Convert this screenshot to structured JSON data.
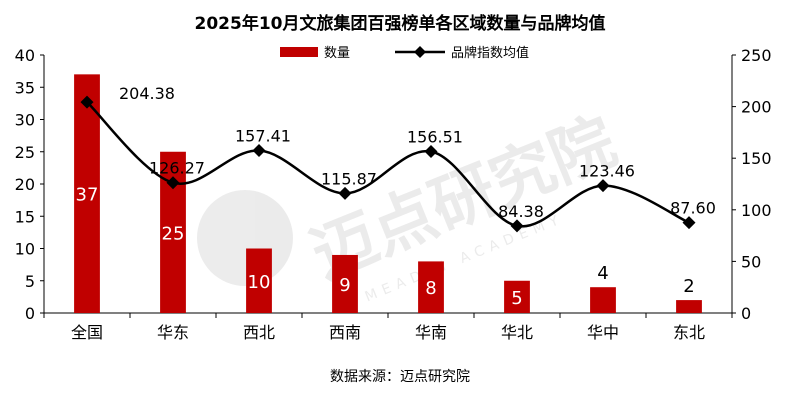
{
  "chart_data": {
    "type": "bar+line",
    "title": "2025年10月文旅集团百强榜单各区域数量与品牌均值",
    "categories": [
      "全国",
      "华东",
      "西北",
      "西南",
      "华南",
      "华北",
      "华中",
      "东北"
    ],
    "series": [
      {
        "name": "数量",
        "type": "bar",
        "axis": "left",
        "color": "#C00000",
        "values": [
          37,
          25,
          10,
          9,
          8,
          5,
          4,
          2
        ]
      },
      {
        "name": "品牌指数均值",
        "type": "line",
        "axis": "right",
        "color": "#000000",
        "values": [
          204.38,
          126.27,
          157.41,
          115.87,
          156.51,
          84.38,
          123.46,
          87.6
        ],
        "labels": [
          "204.38",
          "126.27",
          "157.41",
          "115.87",
          "156.51",
          "84.38",
          "123.46",
          "87.60"
        ]
      }
    ],
    "y_left": {
      "min": 0,
      "max": 40,
      "ticks": [
        0,
        5,
        10,
        15,
        20,
        25,
        30,
        35,
        40
      ]
    },
    "y_right": {
      "min": 0,
      "max": 250,
      "ticks": [
        0,
        50,
        100,
        150,
        200,
        250
      ]
    },
    "grid": false,
    "legend": "top-center",
    "source": "数据来源：迈点研究院",
    "watermark": {
      "text": "迈点研究院",
      "subtext": "MEADIN ACADEMY"
    }
  }
}
